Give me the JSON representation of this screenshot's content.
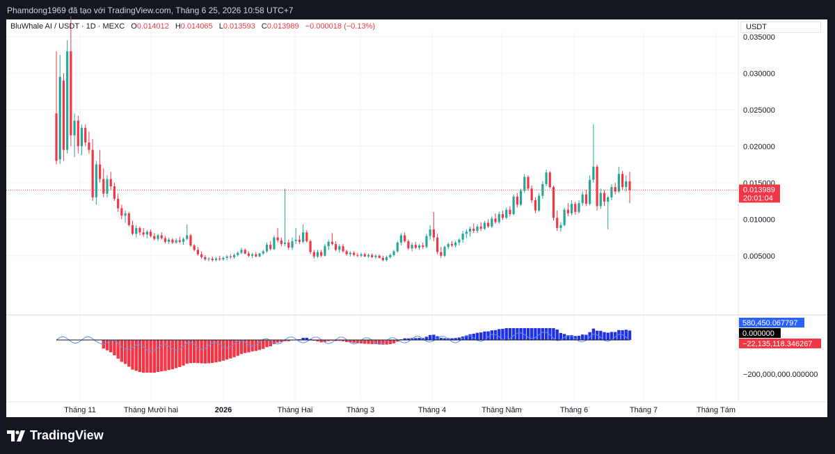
{
  "header": {
    "title": "Phamdong1969 đã tạo với TradingView.com, Tháng 6 25, 2026 10:58 UTC+7"
  },
  "legend": {
    "symbol": "BluWhale AI / USDT · 1D · MEXC",
    "o_label": "O",
    "o_value": "0.014012",
    "h_label": "H",
    "h_value": "0.014065",
    "l_label": "L",
    "l_value": "0.013593",
    "c_label": "C",
    "c_value": "0.013989",
    "change": "−0.000018 (−0.13%)"
  },
  "price_axis": {
    "unit": "USDT",
    "ticks": [
      "0.035000",
      "0.030000",
      "0.025000",
      "0.020000",
      "0.015000",
      "0.010000",
      "0.005000"
    ],
    "last_price": "0.013989",
    "countdown": "20:01:04"
  },
  "indicator_axis": {
    "max_label": "580,450.067797",
    "zero_label": "0.000000",
    "value_label": "−22,135,118.346267",
    "tick_label": "−200,000,000.000000"
  },
  "time_axis": {
    "labels": [
      "Tháng 11",
      "Tháng Mười hai",
      "2026",
      "Tháng Hai",
      "Tháng 3",
      "Tháng 4",
      "Tháng Năm",
      "Tháng 6",
      "Tháng 7",
      "Tháng Tám"
    ]
  },
  "colors": {
    "up": "#26a69a",
    "down": "#f23645",
    "hist_pos": "#2030e8",
    "hist_neg": "#f23645",
    "line": "#5b8def",
    "blue_badge": "#2962ff",
    "red_badge": "#f23645"
  },
  "footer": {
    "logo_text": "TradingView",
    "logo_icon": "tradingview-logo-icon"
  },
  "chart_data": {
    "type": "candlestick",
    "title": "BluWhale AI / USDT · 1D · MEXC",
    "ylim": [
      0.0,
      0.038
    ],
    "ohlc": [
      [
        0.0245,
        0.033,
        0.0175,
        0.018
      ],
      [
        0.0182,
        0.0325,
        0.0176,
        0.0295
      ],
      [
        0.029,
        0.03,
        0.018,
        0.0195
      ],
      [
        0.0195,
        0.0345,
        0.019,
        0.033
      ],
      [
        0.033,
        0.0378,
        0.02,
        0.0215
      ],
      [
        0.0215,
        0.0245,
        0.0185,
        0.0235
      ],
      [
        0.0235,
        0.0242,
        0.019,
        0.02
      ],
      [
        0.02,
        0.023,
        0.0188,
        0.0225
      ],
      [
        0.0225,
        0.023,
        0.02,
        0.0205
      ],
      [
        0.0205,
        0.022,
        0.019,
        0.0195
      ],
      [
        0.0195,
        0.021,
        0.0125,
        0.013
      ],
      [
        0.013,
        0.018,
        0.012,
        0.0175
      ],
      [
        0.0175,
        0.0195,
        0.015,
        0.0155
      ],
      [
        0.0155,
        0.017,
        0.013,
        0.0135
      ],
      [
        0.0135,
        0.016,
        0.013,
        0.0155
      ],
      [
        0.0155,
        0.0165,
        0.014,
        0.0145
      ],
      [
        0.0145,
        0.015,
        0.0125,
        0.0128
      ],
      [
        0.0128,
        0.0135,
        0.011,
        0.0115
      ],
      [
        0.0115,
        0.012,
        0.01,
        0.0105
      ],
      [
        0.0105,
        0.0112,
        0.0095,
        0.0108
      ],
      [
        0.0108,
        0.011,
        0.009,
        0.0092
      ],
      [
        0.0092,
        0.0098,
        0.0078,
        0.008
      ],
      [
        0.008,
        0.0092,
        0.0075,
        0.0088
      ],
      [
        0.0088,
        0.009,
        0.0078,
        0.0082
      ],
      [
        0.0082,
        0.0088,
        0.0076,
        0.0079
      ],
      [
        0.0079,
        0.0085,
        0.0074,
        0.0083
      ],
      [
        0.0083,
        0.0086,
        0.0075,
        0.0077
      ],
      [
        0.0077,
        0.0081,
        0.0071,
        0.0073
      ],
      [
        0.0073,
        0.008,
        0.007,
        0.0078
      ],
      [
        0.0078,
        0.0082,
        0.0072,
        0.0074
      ],
      [
        0.0074,
        0.0077,
        0.0067,
        0.0069
      ],
      [
        0.0069,
        0.0075,
        0.0066,
        0.0072
      ],
      [
        0.0072,
        0.0074,
        0.0066,
        0.0068
      ],
      [
        0.0068,
        0.0074,
        0.0066,
        0.0071
      ],
      [
        0.0071,
        0.0076,
        0.0067,
        0.0069
      ],
      [
        0.0069,
        0.0075,
        0.0065,
        0.0073
      ],
      [
        0.0073,
        0.0093,
        0.0071,
        0.0078
      ],
      [
        0.0078,
        0.008,
        0.0062,
        0.0064
      ],
      [
        0.0064,
        0.0066,
        0.0056,
        0.0058
      ],
      [
        0.0058,
        0.0062,
        0.005,
        0.0052
      ],
      [
        0.0052,
        0.0056,
        0.0046,
        0.0048
      ],
      [
        0.0048,
        0.0051,
        0.0043,
        0.0045
      ],
      [
        0.0045,
        0.0048,
        0.0042,
        0.0046
      ],
      [
        0.0046,
        0.0049,
        0.0042,
        0.0044
      ],
      [
        0.0044,
        0.0048,
        0.0042,
        0.0046
      ],
      [
        0.0046,
        0.005,
        0.0043,
        0.0045
      ],
      [
        0.0045,
        0.0049,
        0.0043,
        0.0047
      ],
      [
        0.0047,
        0.0051,
        0.0044,
        0.0049
      ],
      [
        0.0049,
        0.0052,
        0.0046,
        0.0048
      ],
      [
        0.0048,
        0.0053,
        0.0046,
        0.0051
      ],
      [
        0.0051,
        0.0056,
        0.0049,
        0.0054
      ],
      [
        0.0054,
        0.0061,
        0.0052,
        0.0058
      ],
      [
        0.0058,
        0.006,
        0.0052,
        0.0053
      ],
      [
        0.0053,
        0.0056,
        0.0048,
        0.005
      ],
      [
        0.005,
        0.0054,
        0.0047,
        0.0052
      ],
      [
        0.0052,
        0.0055,
        0.0048,
        0.0049
      ],
      [
        0.0049,
        0.0054,
        0.0048,
        0.0053
      ],
      [
        0.0053,
        0.0058,
        0.0051,
        0.0056
      ],
      [
        0.0056,
        0.0068,
        0.0054,
        0.0065
      ],
      [
        0.0065,
        0.007,
        0.0057,
        0.0059
      ],
      [
        0.0059,
        0.0078,
        0.0058,
        0.0075
      ],
      [
        0.0075,
        0.0088,
        0.0068,
        0.0071
      ],
      [
        0.0071,
        0.0075,
        0.0063,
        0.0066
      ],
      [
        0.0066,
        0.0142,
        0.0063,
        0.0068
      ],
      [
        0.0068,
        0.0072,
        0.0058,
        0.0061
      ],
      [
        0.0061,
        0.0075,
        0.0058,
        0.007
      ],
      [
        0.007,
        0.0088,
        0.0066,
        0.0072
      ],
      [
        0.0072,
        0.0078,
        0.0066,
        0.0069
      ],
      [
        0.0069,
        0.0093,
        0.0067,
        0.0082
      ],
      [
        0.0082,
        0.0085,
        0.0068,
        0.007
      ],
      [
        0.007,
        0.0072,
        0.0052,
        0.0055
      ],
      [
        0.0055,
        0.0058,
        0.0046,
        0.0049
      ],
      [
        0.0049,
        0.0058,
        0.0047,
        0.0055
      ],
      [
        0.0055,
        0.0058,
        0.0048,
        0.005
      ],
      [
        0.005,
        0.0066,
        0.0049,
        0.0063
      ],
      [
        0.0063,
        0.0072,
        0.0058,
        0.0069
      ],
      [
        0.0069,
        0.0081,
        0.0064,
        0.0066
      ],
      [
        0.0066,
        0.007,
        0.0056,
        0.0058
      ],
      [
        0.0058,
        0.0066,
        0.0054,
        0.0063
      ],
      [
        0.0063,
        0.0066,
        0.0054,
        0.0056
      ],
      [
        0.0056,
        0.0058,
        0.005,
        0.0052
      ],
      [
        0.0052,
        0.0056,
        0.0049,
        0.0054
      ],
      [
        0.0054,
        0.0056,
        0.0049,
        0.0051
      ],
      [
        0.0051,
        0.0054,
        0.0048,
        0.005
      ],
      [
        0.005,
        0.0054,
        0.0048,
        0.0052
      ],
      [
        0.0052,
        0.0054,
        0.0048,
        0.0049
      ],
      [
        0.0049,
        0.0053,
        0.0047,
        0.0051
      ],
      [
        0.0051,
        0.0053,
        0.0047,
        0.0048
      ],
      [
        0.0048,
        0.0052,
        0.0046,
        0.005
      ],
      [
        0.005,
        0.0052,
        0.0046,
        0.0047
      ],
      [
        0.0047,
        0.005,
        0.0042,
        0.0044
      ],
      [
        0.0044,
        0.005,
        0.0042,
        0.0048
      ],
      [
        0.0048,
        0.0053,
        0.0046,
        0.0051
      ],
      [
        0.0051,
        0.0058,
        0.0049,
        0.0056
      ],
      [
        0.0056,
        0.007,
        0.0054,
        0.0068
      ],
      [
        0.0068,
        0.0081,
        0.0064,
        0.0078
      ],
      [
        0.0078,
        0.0082,
        0.0068,
        0.007
      ],
      [
        0.007,
        0.0072,
        0.0058,
        0.006
      ],
      [
        0.006,
        0.0068,
        0.0056,
        0.0065
      ],
      [
        0.0065,
        0.0069,
        0.0059,
        0.0061
      ],
      [
        0.0061,
        0.0066,
        0.0058,
        0.0064
      ],
      [
        0.0064,
        0.0068,
        0.0059,
        0.0062
      ],
      [
        0.0062,
        0.008,
        0.006,
        0.0077
      ],
      [
        0.0077,
        0.0092,
        0.0072,
        0.0086
      ],
      [
        0.0086,
        0.011,
        0.007,
        0.0075
      ],
      [
        0.0075,
        0.008,
        0.0052,
        0.0055
      ],
      [
        0.0055,
        0.0062,
        0.0047,
        0.005
      ],
      [
        0.005,
        0.0064,
        0.0048,
        0.0062
      ],
      [
        0.0062,
        0.0068,
        0.0059,
        0.0066
      ],
      [
        0.0066,
        0.007,
        0.0062,
        0.0064
      ],
      [
        0.0064,
        0.007,
        0.0061,
        0.0068
      ],
      [
        0.0068,
        0.0074,
        0.0064,
        0.0072
      ],
      [
        0.0072,
        0.0084,
        0.0068,
        0.008
      ],
      [
        0.008,
        0.0086,
        0.0074,
        0.0083
      ],
      [
        0.0083,
        0.009,
        0.0076,
        0.0087
      ],
      [
        0.0087,
        0.0094,
        0.0081,
        0.0084
      ],
      [
        0.0084,
        0.0093,
        0.0081,
        0.009
      ],
      [
        0.009,
        0.0096,
        0.0084,
        0.0087
      ],
      [
        0.0087,
        0.0098,
        0.0085,
        0.0095
      ],
      [
        0.0095,
        0.01,
        0.0088,
        0.009
      ],
      [
        0.009,
        0.0104,
        0.0088,
        0.0101
      ],
      [
        0.0101,
        0.0108,
        0.0094,
        0.0096
      ],
      [
        0.0096,
        0.011,
        0.0094,
        0.0107
      ],
      [
        0.0107,
        0.0112,
        0.0099,
        0.0102
      ],
      [
        0.0102,
        0.0116,
        0.01,
        0.0113
      ],
      [
        0.0113,
        0.0118,
        0.0104,
        0.0107
      ],
      [
        0.0107,
        0.0134,
        0.0105,
        0.0131
      ],
      [
        0.0131,
        0.0136,
        0.0116,
        0.012
      ],
      [
        0.012,
        0.0142,
        0.0118,
        0.0139
      ],
      [
        0.0139,
        0.0162,
        0.0136,
        0.0158
      ],
      [
        0.0158,
        0.016,
        0.0139,
        0.0142
      ],
      [
        0.0142,
        0.0146,
        0.0122,
        0.0126
      ],
      [
        0.0126,
        0.013,
        0.0108,
        0.0112
      ],
      [
        0.0112,
        0.0136,
        0.011,
        0.0132
      ],
      [
        0.0132,
        0.0152,
        0.0128,
        0.0148
      ],
      [
        0.0148,
        0.0168,
        0.0145,
        0.0164
      ],
      [
        0.0164,
        0.0166,
        0.0142,
        0.0144
      ],
      [
        0.0144,
        0.0146,
        0.0098,
        0.0102
      ],
      [
        0.0102,
        0.0112,
        0.0084,
        0.0088
      ],
      [
        0.0088,
        0.0096,
        0.0083,
        0.0092
      ],
      [
        0.0092,
        0.0116,
        0.009,
        0.0113
      ],
      [
        0.0113,
        0.0122,
        0.0104,
        0.0108
      ],
      [
        0.0108,
        0.0126,
        0.0105,
        0.0121
      ],
      [
        0.0121,
        0.0124,
        0.0106,
        0.011
      ],
      [
        0.011,
        0.0126,
        0.0108,
        0.0122
      ],
      [
        0.0122,
        0.0138,
        0.0118,
        0.0134
      ],
      [
        0.0134,
        0.014,
        0.0118,
        0.0121
      ],
      [
        0.0121,
        0.016,
        0.0119,
        0.0154
      ],
      [
        0.0154,
        0.023,
        0.015,
        0.0172
      ],
      [
        0.0172,
        0.0175,
        0.0112,
        0.0118
      ],
      [
        0.0118,
        0.0142,
        0.0114,
        0.0136
      ],
      [
        0.0136,
        0.014,
        0.0118,
        0.0124
      ],
      [
        0.0124,
        0.0132,
        0.0086,
        0.013
      ],
      [
        0.013,
        0.0148,
        0.0126,
        0.0144
      ],
      [
        0.0144,
        0.015,
        0.0134,
        0.0138
      ],
      [
        0.0138,
        0.0172,
        0.0136,
        0.0162
      ],
      [
        0.0162,
        0.0166,
        0.014,
        0.0144
      ],
      [
        0.0144,
        0.016,
        0.0138,
        0.0152
      ],
      [
        0.0152,
        0.0165,
        0.0122,
        0.014
      ]
    ],
    "indicator": {
      "series": [
        {
          "name": "histogram",
          "type": "column"
        },
        {
          "name": "signal",
          "type": "line"
        }
      ],
      "ylim": [
        -290000000,
        70000000
      ]
    }
  }
}
